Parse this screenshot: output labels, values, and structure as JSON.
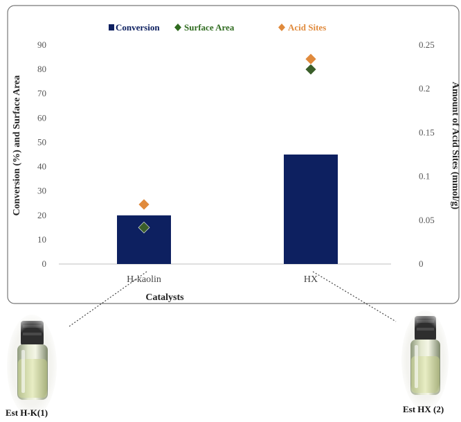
{
  "chart_data": {
    "type": "bar",
    "categories": [
      "H-kaolin",
      "HX"
    ],
    "xlabel": "Catalysts",
    "ylabel": "Conversion (%) and Surface Area",
    "y2label": "Amount of Acid Sites (mmol/g)",
    "ylim": [
      0,
      90
    ],
    "y2lim": [
      0,
      0.25
    ],
    "yticks": [
      "0",
      "10",
      "20",
      "30",
      "40",
      "50",
      "60",
      "70",
      "80",
      "90"
    ],
    "y2ticks": [
      "0",
      "0.05",
      "0.1",
      "0.15",
      "0.2",
      "0.25"
    ],
    "grid": false,
    "legend_position": "top",
    "series": [
      {
        "name": "Conversion",
        "kind": "bar",
        "axis": "left",
        "color": "#0d2060",
        "values": [
          20,
          45
        ]
      },
      {
        "name": "Surface Area",
        "kind": "marker",
        "marker": "diamond",
        "axis": "left",
        "color": "#3a5e2a",
        "values": [
          15,
          80
        ]
      },
      {
        "name": "Acid Sites",
        "kind": "marker",
        "marker": "diamond",
        "axis": "right",
        "color": "#e08a3c",
        "values": [
          0.068,
          0.234
        ]
      }
    ]
  },
  "legend": {
    "conversion_label": "Conversion",
    "surface_area_label": "Surface Area",
    "acid_sites_label": "Acid Sites"
  },
  "photos": [
    {
      "label": "Est H-K(1)"
    },
    {
      "label": "Est HX (2)"
    }
  ],
  "colors": {
    "conversion": "#0d2060",
    "surface_area_legend": "#2f6b1f",
    "acid_sites_legend": "#e08a3c",
    "frame": "#777777"
  }
}
